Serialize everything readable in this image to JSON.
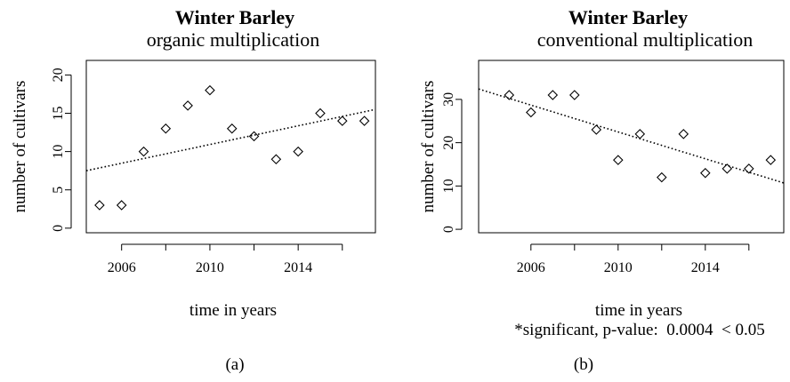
{
  "chart_data": [
    {
      "type": "scatter",
      "title": "Winter Barley",
      "subtitle": "organic multiplication",
      "xlabel": "time in years",
      "ylabel": "number of cultivars",
      "panel_label": "(a)",
      "x": [
        2005,
        2006,
        2007,
        2008,
        2009,
        2010,
        2011,
        2012,
        2013,
        2014,
        2015,
        2016,
        2017
      ],
      "series": [
        {
          "values": [
            3,
            3,
            10,
            13,
            16,
            18,
            13,
            12,
            9,
            10,
            15,
            14,
            14
          ],
          "marker": "open-diamond",
          "color": "#000000"
        }
      ],
      "trendline": {
        "x": [
          2004.4,
          2017.5
        ],
        "y": [
          7.5,
          15.5
        ],
        "style": "dotted",
        "color": "#000000"
      },
      "xlim": [
        2004.4,
        2017.5
      ],
      "ylim": [
        -0.6,
        21.9
      ],
      "xticks": [
        2006,
        2008,
        2010,
        2012,
        2014,
        2016
      ],
      "xtick_labels": [
        "2006",
        "2010",
        "2014"
      ],
      "yticks": [
        "0",
        "5",
        "10",
        "15",
        "20"
      ],
      "grid": false
    },
    {
      "type": "scatter",
      "title": "Winter Barley",
      "subtitle": "conventional multiplication",
      "xlabel": "time in years",
      "ylabel": "number of cultivars",
      "note": "*significant, p-value:  0.0004  < 0.05",
      "panel_label": "(b)",
      "x": [
        2005,
        2006,
        2007,
        2008,
        2009,
        2010,
        2011,
        2012,
        2013,
        2014,
        2015,
        2016,
        2017
      ],
      "series": [
        {
          "values": [
            31,
            27,
            31,
            31,
            23,
            16,
            22,
            12,
            22,
            13,
            14,
            14,
            16
          ],
          "marker": "open-diamond",
          "color": "#000000"
        }
      ],
      "trendline": {
        "x": [
          2003.6,
          2017.6
        ],
        "y": [
          32.4,
          10.7
        ],
        "style": "dotted",
        "color": "#000000"
      },
      "xlim": [
        2003.6,
        2017.6
      ],
      "ylim": [
        -0.8,
        39.0
      ],
      "xticks": [
        2006,
        2008,
        2010,
        2012,
        2014,
        2016
      ],
      "xtick_labels": [
        "2006",
        "2010",
        "2014"
      ],
      "yticks": [
        "0",
        "10",
        "20",
        "30"
      ],
      "grid": false
    }
  ]
}
